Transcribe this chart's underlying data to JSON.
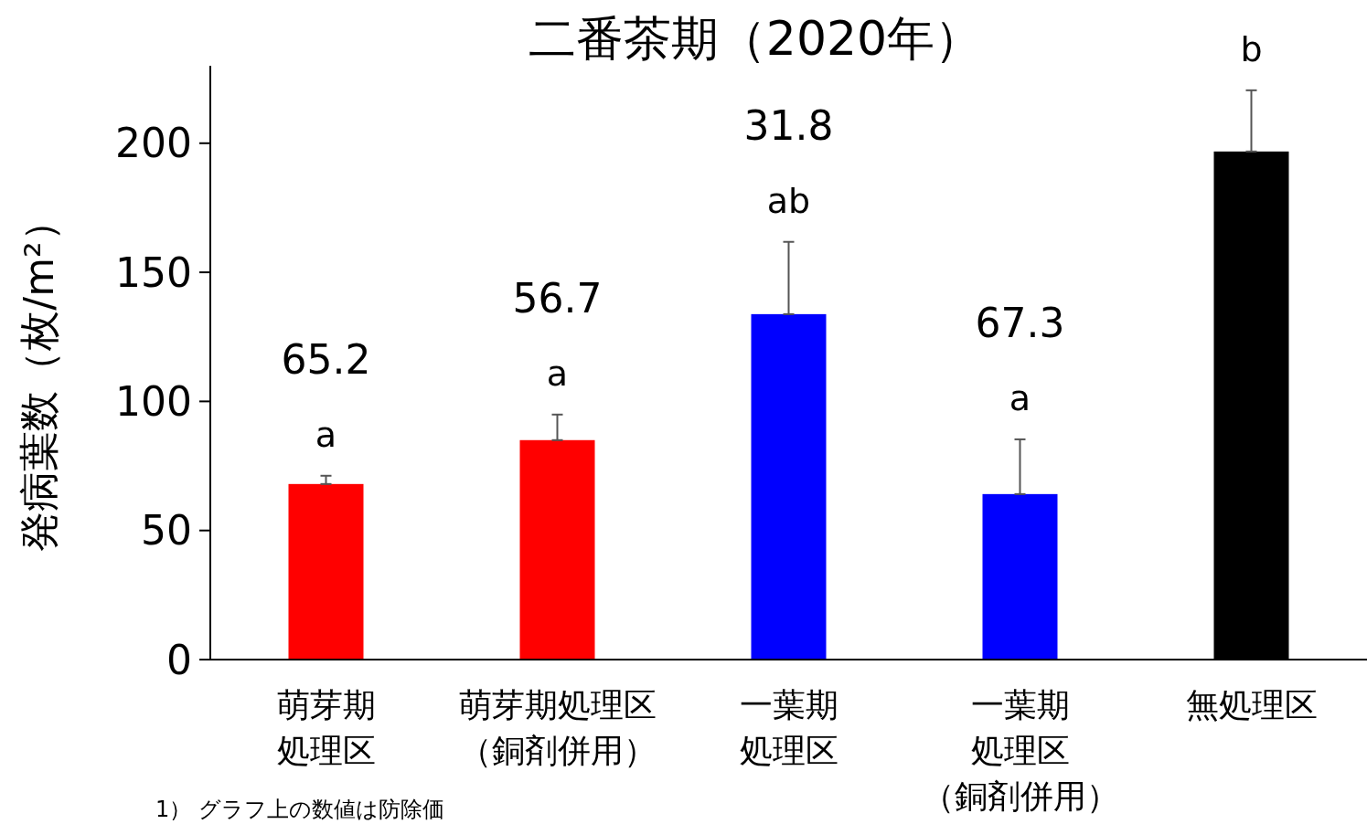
{
  "chart_data": {
    "type": "bar",
    "title": "二番茶期（2020年）",
    "ylabel": "発病葉数（枚/m²）",
    "categories": [
      "萌芽期処理区",
      "萌芽期処理区（銅剤併用）",
      "一葉期処理区",
      "一葉期処理区（銅剤併用）",
      "無処理区"
    ],
    "values": [
      68.0,
      85.0,
      133.8,
      64.1,
      196.8
    ],
    "colors": [
      "#ff0000",
      "#ff0000",
      "#0000ff",
      "#0000ff",
      "#000000"
    ],
    "errors": [
      [
        68.0,
        71.2
      ],
      [
        85.0,
        94.9
      ],
      [
        133.8,
        161.8
      ],
      [
        64.1,
        85.3
      ],
      [
        196.8,
        220.5
      ]
    ],
    "ylim": [
      0,
      230
    ],
    "yticks": [
      0,
      50,
      100,
      150,
      200
    ],
    "grid": false,
    "annotations": [
      "a",
      "65.2",
      "a",
      "56.7",
      "ab",
      "31.8",
      "a",
      "67.3",
      "b",
      "1） グラフ上の数値は防除価"
    ]
  }
}
